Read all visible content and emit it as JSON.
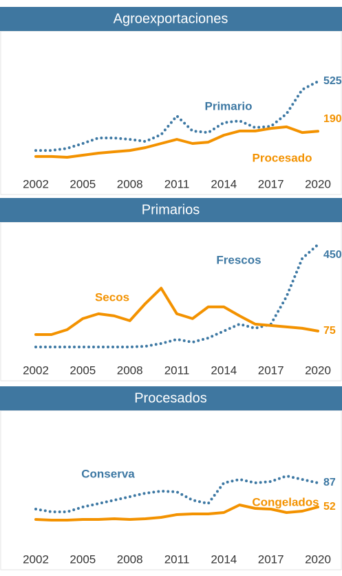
{
  "chart_data": [
    {
      "type": "line",
      "title": "Agroexportaciones",
      "x": [
        2002,
        2003,
        2004,
        2005,
        2006,
        2007,
        2008,
        2009,
        2010,
        2011,
        2012,
        2013,
        2014,
        2015,
        2016,
        2017,
        2018,
        2019,
        2020
      ],
      "xlim": [
        2002,
        2020
      ],
      "xticks": [
        2002,
        2005,
        2008,
        2011,
        2014,
        2017,
        2020
      ],
      "ylim": [
        0,
        600
      ],
      "series": [
        {
          "name": "Primario",
          "color": "#3d78a3",
          "style": "dotted",
          "values": [
            60,
            60,
            74,
            107,
            144,
            144,
            135,
            121,
            167,
            293,
            191,
            181,
            247,
            260,
            214,
            223,
            307,
            470,
            525
          ]
        },
        {
          "name": "Procesado",
          "color": "#f39200",
          "style": "solid",
          "values": [
            19,
            19,
            14,
            28,
            42,
            51,
            60,
            79,
            107,
            135,
            107,
            116,
            163,
            191,
            191,
            209,
            219,
            181,
            190
          ]
        }
      ]
    },
    {
      "type": "line",
      "title": "Primarios",
      "x": [
        2002,
        2003,
        2004,
        2005,
        2006,
        2007,
        2008,
        2009,
        2010,
        2011,
        2012,
        2013,
        2014,
        2015,
        2016,
        2017,
        2018,
        2019,
        2020
      ],
      "xlim": [
        2002,
        2020
      ],
      "xticks": [
        2002,
        2005,
        2008,
        2011,
        2014,
        2017,
        2020
      ],
      "ylim": [
        0,
        500
      ],
      "series": [
        {
          "name": "Frescos",
          "color": "#3d78a3",
          "style": "dotted",
          "values": [
            6,
            6,
            6,
            6,
            6,
            6,
            6,
            9,
            21,
            39,
            27,
            45,
            75,
            105,
            87,
            105,
            225,
            390,
            450
          ]
        },
        {
          "name": "Secos",
          "color": "#f39200",
          "style": "solid",
          "values": [
            60,
            60,
            81,
            129,
            150,
            141,
            120,
            195,
            261,
            150,
            129,
            180,
            180,
            141,
            105,
            99,
            93,
            87,
            75
          ]
        }
      ]
    },
    {
      "type": "line",
      "title": "Procesados",
      "x": [
        2002,
        2003,
        2004,
        2005,
        2006,
        2007,
        2008,
        2009,
        2010,
        2011,
        2012,
        2013,
        2014,
        2015,
        2016,
        2017,
        2018,
        2019,
        2020
      ],
      "xlim": [
        2002,
        2020
      ],
      "xticks": [
        2002,
        2005,
        2008,
        2011,
        2014,
        2017,
        2020
      ],
      "ylim": [
        0,
        100
      ],
      "series": [
        {
          "name": "Conserva",
          "color": "#3d78a3",
          "style": "dotted",
          "values": [
            49,
            45,
            45,
            52,
            57,
            62,
            67,
            72,
            75,
            74,
            62,
            57,
            87,
            92,
            87,
            89,
            97,
            92,
            87
          ]
        },
        {
          "name": "Congelados",
          "color": "#f39200",
          "style": "solid",
          "values": [
            34,
            33,
            33,
            34,
            34,
            35,
            34,
            35,
            37,
            41,
            42,
            42,
            44,
            55,
            50,
            49,
            44,
            46,
            52
          ]
        }
      ]
    }
  ]
}
